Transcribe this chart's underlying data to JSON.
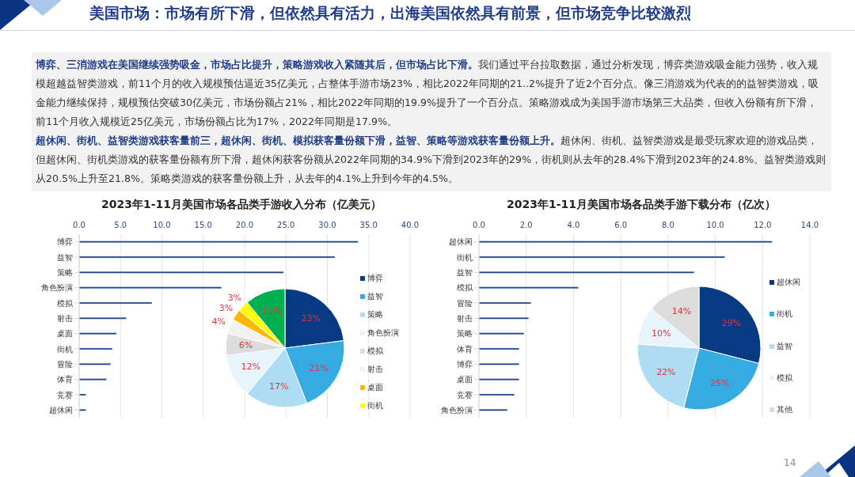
{
  "chart_data": [
    {
      "type": "other",
      "title": "美国市场：市场有所下滑，但依然具有活力，出海美国依然具有前景，但市场竞争比较激烈",
      "annotations": [
        "博弈、三消游戏在美国继续强势吸金，市场占比提升，策略游戏收入紧随其后，但市场占比下滑。",
        "我们通过平台拉取数据，通过分析发现，博弈类游戏吸金能力强势，收入规模超越益智类游戏，前11个月的收入规模预估逼近35亿美元，占整体手游市场23%，相比2022年同期的21..2%提升了近2个百分点。像三消游戏为代表的的益智类游戏，吸金能力继续保持，规模预估突破30亿美元，市场份额占21%，相比2022年同期的19.9%提升了一个百分点。策略游戏成为美国手游市场第三大品类，但收入份额有所下滑，前11个月收入规模近25亿美元，市场份额占比为17%，2022年同期是17.9%。",
        "超休闲、街机、益智类游戏获客量前三，超休闲、街机、模拟获客量份额下滑，益智、策略等游戏获客量份额上升。",
        "超休闲、街机、益智类游戏是最受玩家欢迎的游戏品类，但超休闲、街机类游戏的获客量份额有所下滑，超休闲获客份额从2022年同期的34.9%下滑到2023年的29%，街机则从去年的28.4%下滑到2023年的24.8%。益智类游戏则从20.5%上升至21.8%。策略类游戏的获客量份额上升，从去年的4.1%上升到今年的4.5%。",
        "14"
      ]
    },
    {
      "type": "bar",
      "orientation": "horizontal",
      "title": "2023年1-11月美国市场各品类手游收入分布（亿美元）",
      "categories": [
        "博弈",
        "益智",
        "策略",
        "角色扮演",
        "模拟",
        "射击",
        "桌面",
        "街机",
        "冒险",
        "体育",
        "竞赛",
        "超休闲"
      ],
      "values": [
        33.7,
        30.9,
        24.7,
        17.2,
        8.8,
        5.7,
        4.5,
        4.0,
        3.8,
        3.3,
        0.8,
        0.8
      ],
      "color": "#0b3483",
      "xlim": [
        0,
        40
      ],
      "xticks": [
        {
          "value": 0,
          "label": "0.0"
        },
        {
          "value": 5,
          "label": "5.0"
        },
        {
          "value": 10,
          "label": "10.0"
        },
        {
          "value": 15,
          "label": "15.0"
        },
        {
          "value": 20,
          "label": "20.0"
        },
        {
          "value": 25,
          "label": "25.0"
        },
        {
          "value": 30,
          "label": "30.0"
        },
        {
          "value": 35,
          "label": "35.0"
        },
        {
          "value": 40,
          "label": "40.0"
        }
      ],
      "grid": "x"
    },
    {
      "type": "pie",
      "categories": [
        "博弈",
        "益智",
        "策略",
        "角色扮演",
        "模拟",
        "射击",
        "桌面",
        "街机",
        null
      ],
      "values": [
        23,
        21,
        17,
        12,
        6,
        4,
        3,
        3,
        11
      ],
      "colors": [
        "#063a82",
        "#36abe2",
        "#addcf3",
        "#e7f4fc",
        "#dcdcdc",
        "#f1f1f1",
        "#ffb800",
        "#ffff00",
        "#00b050"
      ],
      "value_labels": [
        "23%",
        "21%",
        "17%",
        "12%",
        "6%",
        "4%",
        "3%",
        "3%",
        "11%"
      ],
      "legend": "right"
    },
    {
      "type": "bar",
      "orientation": "horizontal",
      "title": "2023年1-11月美国市场各品类手游下载分布（亿次）",
      "categories": [
        "超休闲",
        "街机",
        "益智",
        "模拟",
        "冒险",
        "射击",
        "策略",
        "体育",
        "博弈",
        "桌面",
        "竞赛",
        "角色扮演"
      ],
      "values": [
        12.4,
        10.4,
        9.1,
        4.2,
        2.2,
        2.1,
        1.9,
        1.7,
        1.7,
        1.7,
        1.5,
        1.2
      ],
      "color": "#0b3483",
      "xlim": [
        0,
        14
      ],
      "xticks": [
        {
          "value": 0,
          "label": "0.0"
        },
        {
          "value": 2,
          "label": "2.0"
        },
        {
          "value": 4,
          "label": "4.0"
        },
        {
          "value": 6,
          "label": "6.0"
        },
        {
          "value": 8,
          "label": "8.0"
        },
        {
          "value": 10,
          "label": "10.0"
        },
        {
          "value": 12,
          "label": "12.0"
        },
        {
          "value": 14,
          "label": "14.0"
        }
      ],
      "grid": "x"
    },
    {
      "type": "pie",
      "categories": [
        "超休闲",
        "街机",
        "益智",
        "模拟",
        "其他"
      ],
      "values": [
        29,
        25,
        22,
        10,
        14
      ],
      "colors": [
        "#063a82",
        "#36abe2",
        "#addcf3",
        "#e7f4fc",
        "#dcdcdc"
      ],
      "value_labels": [
        "29%",
        "25%",
        "22%",
        "10%",
        "14%"
      ],
      "legend": "right"
    }
  ]
}
